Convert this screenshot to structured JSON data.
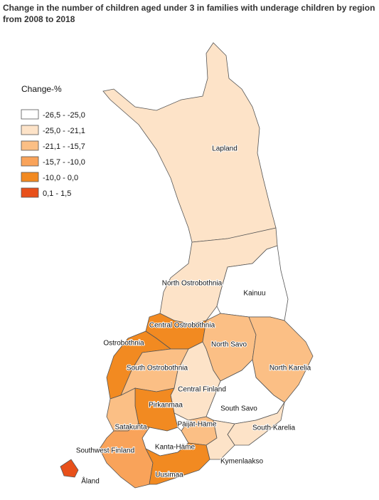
{
  "title": "Change in the number of children aged under 3 in families with underage children by region from 2008 to 2018",
  "legend": {
    "title": "Change-%",
    "items": [
      {
        "label": "-26,5 - -25,0",
        "color": "#ffffff"
      },
      {
        "label": "-25,0 - -21,1",
        "color": "#fde3c8"
      },
      {
        "label": "-21,1 - -15,7",
        "color": "#fbbf85"
      },
      {
        "label": "-15,7 - -10,0",
        "color": "#f9a35a"
      },
      {
        "label": "-10,0 - 0,0",
        "color": "#f28a21"
      },
      {
        "label": "0,1 - 1,5",
        "color": "#e8501a"
      }
    ]
  },
  "regions": [
    {
      "name": "Lapland",
      "color": "#fde3c8"
    },
    {
      "name": "North Ostrobothnia",
      "color": "#fde3c8"
    },
    {
      "name": "Kainuu",
      "color": "#ffffff"
    },
    {
      "name": "Central Ostrobothnia",
      "color": "#f28a21"
    },
    {
      "name": "Ostrobothnia",
      "color": "#f28a21"
    },
    {
      "name": "South Ostrobothnia",
      "color": "#fbbf85"
    },
    {
      "name": "North Savo",
      "color": "#fbbf85"
    },
    {
      "name": "North Karelia",
      "color": "#fbbf85"
    },
    {
      "name": "Central Finland",
      "color": "#fde3c8"
    },
    {
      "name": "South Savo",
      "color": "#ffffff"
    },
    {
      "name": "South Karelia",
      "color": "#fde3c8"
    },
    {
      "name": "Pirkanmaa",
      "color": "#f28a21"
    },
    {
      "name": "Satakunta",
      "color": "#fbbf85"
    },
    {
      "name": "Päijät-Häme",
      "color": "#fbbf85"
    },
    {
      "name": "Kanta-Häme",
      "color": "#ffffff"
    },
    {
      "name": "Kymenlaakso",
      "color": "#fde3c8"
    },
    {
      "name": "Southwest Finland",
      "color": "#f9a35a"
    },
    {
      "name": "Uusimaa",
      "color": "#f28a21"
    },
    {
      "name": "Åland",
      "color": "#e8501a"
    }
  ]
}
